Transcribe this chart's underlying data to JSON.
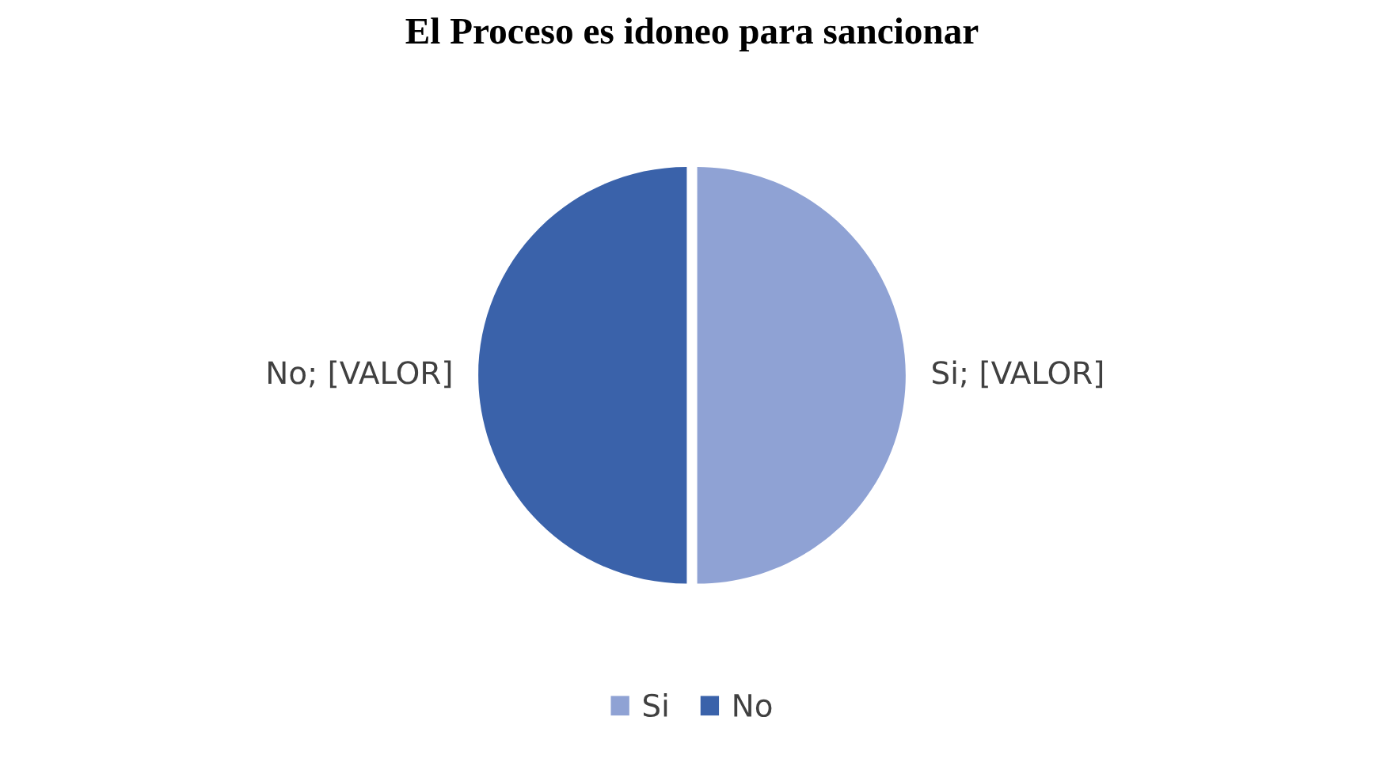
{
  "chart_data": {
    "type": "pie",
    "title": "El Proceso es idoneo para sancionar",
    "categories": [
      "Si",
      "No"
    ],
    "values": [
      50,
      50
    ],
    "colors": [
      "#8fa2d4",
      "#3a62aa"
    ],
    "value_labels": [
      "Si; [VALOR]",
      "No; [VALOR]"
    ],
    "legend": "bottom"
  }
}
